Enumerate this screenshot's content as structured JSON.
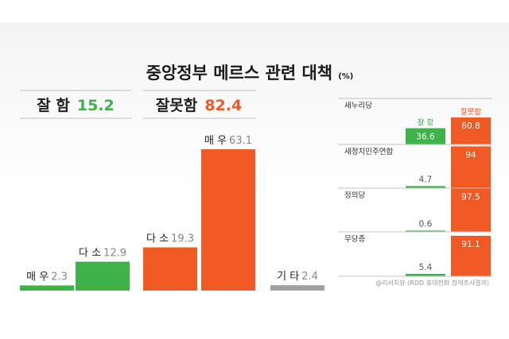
{
  "colors": {
    "good": "#3db34a",
    "bad": "#f15a24",
    "other": "#a0a0a0",
    "text": "#1a1a1a"
  },
  "chart_data": [
    {
      "type": "bar",
      "title": "중앙정부 메르스 관련 대책",
      "unit": "(%)",
      "summary": [
        {
          "label": "잘 함",
          "value": 15.2
        },
        {
          "label": "잘못함",
          "value": 82.4
        }
      ],
      "categories": [
        "매 우",
        "다 소",
        "다 소",
        "매 우",
        "기 타"
      ],
      "values": [
        2.3,
        12.9,
        19.3,
        63.1,
        2.4
      ],
      "groups": [
        "good",
        "good",
        "bad",
        "bad",
        "other"
      ],
      "ylim": [
        0,
        63.1
      ]
    },
    {
      "type": "bar",
      "series": [
        {
          "name": "잘 함",
          "values": [
            36.6,
            4.7,
            0.6,
            5.4
          ]
        },
        {
          "name": "잘못함",
          "values": [
            60.8,
            94.0,
            97.5,
            91.1
          ]
        }
      ],
      "categories": [
        "새누리당",
        "새정치민주연합",
        "정의당",
        "무당층"
      ],
      "ylim": [
        0,
        100
      ]
    }
  ],
  "source": "@리서치뷰 (RDD 휴대전화 정례조사결과)"
}
